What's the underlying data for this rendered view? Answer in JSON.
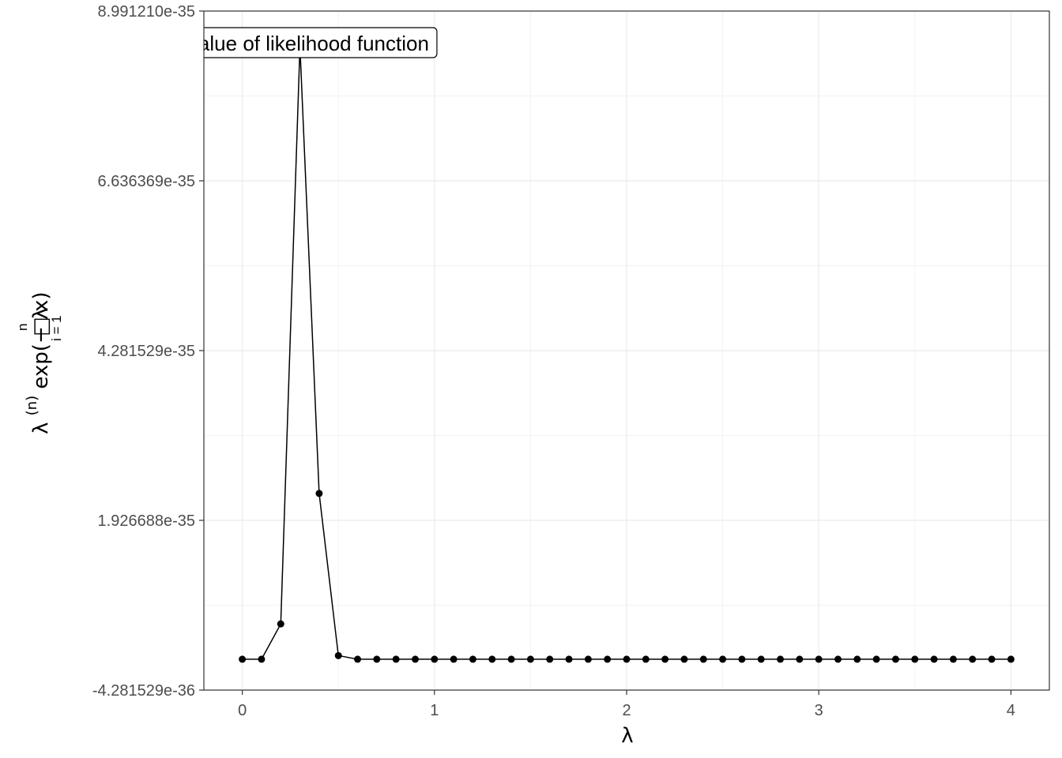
{
  "chart_data": {
    "type": "line",
    "xlabel": "λ",
    "ylabel": {
      "base": "λ",
      "exponent": "(n)",
      "text": "exp(− λ",
      "sum_upper": "n",
      "sum_lower": "i = 1",
      "sum_symbol": "□",
      "tail": "x)"
    },
    "annotation": "n value of likelihood function",
    "xlim": [
      -0.2,
      4.2
    ],
    "ylim": [
      -4.281529e-36,
      8.99121e-35
    ],
    "x_ticks": [
      0,
      1,
      2,
      3,
      4
    ],
    "x_tick_labels": [
      "0",
      "1",
      "2",
      "3",
      "4"
    ],
    "y_ticks": [
      -4.281529e-36,
      1.926688e-35,
      4.281529e-35,
      6.636369e-35,
      8.99121e-35
    ],
    "y_tick_labels": [
      "-4.281529e-36",
      "1.926688e-35",
      "4.281529e-35",
      "6.636369e-35",
      "8.991210e-35"
    ],
    "grid": true,
    "series": [
      {
        "x": [
          0.0,
          0.1,
          0.2,
          0.3,
          0.4,
          0.5,
          0.6,
          0.7,
          0.8,
          0.9,
          1.0,
          1.1,
          1.2,
          1.3,
          1.4,
          1.5,
          1.6,
          1.7,
          1.8,
          1.9,
          2.0,
          2.1,
          2.2,
          2.3,
          2.4,
          2.5,
          2.6,
          2.7,
          2.8,
          2.9,
          3.0,
          3.1,
          3.2,
          3.3,
          3.4,
          3.5,
          3.6,
          3.7,
          3.8,
          3.9,
          4.0
        ],
        "y": [
          0,
          0,
          4.9e-36,
          8.5e-35,
          2.3e-35,
          5e-37,
          0,
          0,
          0,
          0,
          0,
          0,
          0,
          0,
          0,
          0,
          0,
          0,
          0,
          0,
          0,
          0,
          0,
          0,
          0,
          0,
          0,
          0,
          0,
          0,
          0,
          0,
          0,
          0,
          0,
          0,
          0,
          0,
          0,
          0,
          0
        ]
      }
    ]
  }
}
